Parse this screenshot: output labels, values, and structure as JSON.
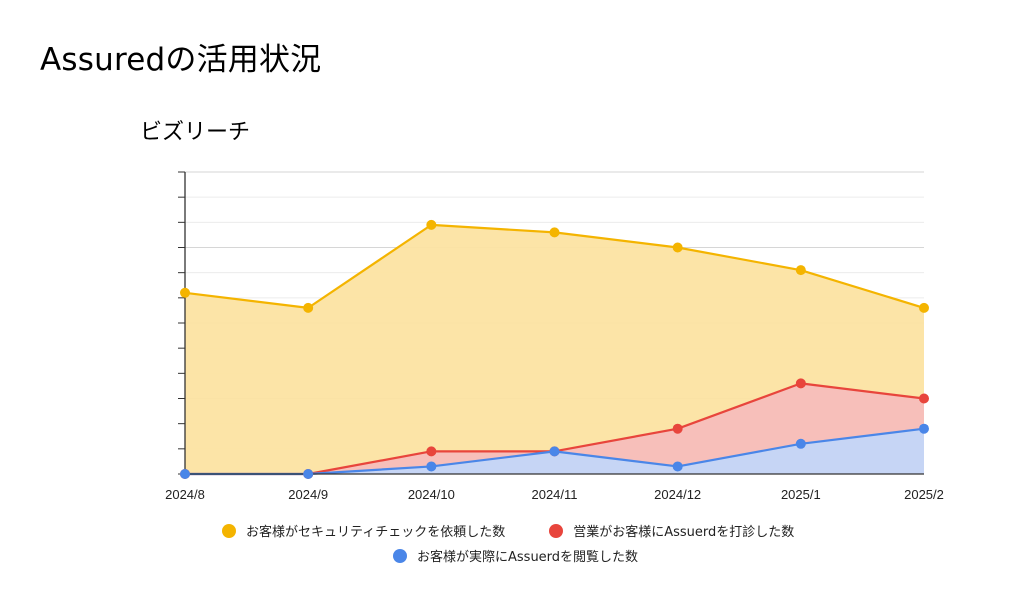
{
  "slide": {
    "title": "Assuredの活用状況"
  },
  "chart_data": {
    "type": "area",
    "title": "ビズリーチ",
    "xlabel": "",
    "ylabel": "",
    "categories": [
      "2024/8",
      "2024/9",
      "2024/10",
      "2024/11",
      "2024/12",
      "2025/1",
      "2025/2"
    ],
    "ylim": [
      0,
      12
    ],
    "y_ticks_labeled": false,
    "grid": true,
    "legend_position": "bottom",
    "series": [
      {
        "name": "お客様がセキュリティチェックを依頼した数",
        "color": "#F4B400",
        "fill": "#FCE3A2",
        "values": [
          7.2,
          6.6,
          9.9,
          9.6,
          9.0,
          8.1,
          6.6
        ]
      },
      {
        "name": "営業がお客様にAssuerdを打診した数",
        "color": "#E8453C",
        "fill": "#F7BDBA",
        "values": [
          0,
          0,
          0.9,
          0.9,
          1.8,
          3.6,
          3.0
        ]
      },
      {
        "name": "お客様が実際にAssuerdを閲覧した数",
        "color": "#4A86E8",
        "fill": "#C3D6F8",
        "values": [
          0,
          0,
          0.3,
          0.9,
          0.3,
          1.2,
          1.8
        ]
      }
    ]
  }
}
